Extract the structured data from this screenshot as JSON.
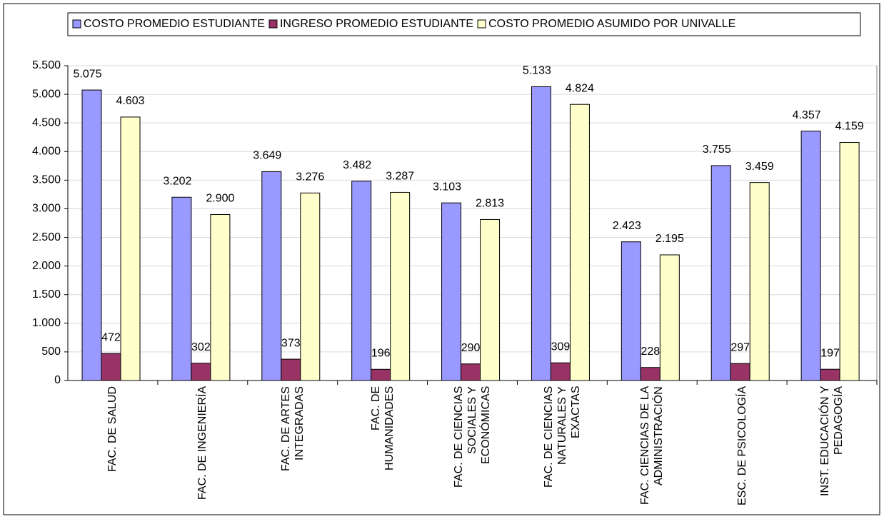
{
  "chart_data": {
    "type": "bar",
    "categories": [
      "FAC. DE SALUD",
      "FAC. DE INGENIERÍA",
      "FAC. DE ARTES INTEGRADAS",
      "FAC. DE HUMANIDADES",
      "FAC. DE CIENCIAS SOCIALES Y ECONÓMICAS",
      "FAC. DE CIENCIAS NATURALES Y EXACTAS",
      "FAC. CIENCIAS DE LA ADMINISTRACIÓN",
      "ESC. DE PSICOLOGÍA",
      "INST. EDUCACIÓN Y PEDAGOGÍA"
    ],
    "series": [
      {
        "name": "COSTO PROMEDIO ESTUDIANTE",
        "color": "#9999ff",
        "values": [
          5075,
          3202,
          3649,
          3482,
          3103,
          5133,
          2423,
          3755,
          4357
        ],
        "value_labels": [
          "5.075",
          "3.202",
          "3.649",
          "3.482",
          "3.103",
          "5.133",
          "2.423",
          "3.755",
          "4.357"
        ]
      },
      {
        "name": "INGRESO PROMEDIO ESTUDIANTE",
        "color": "#993366",
        "values": [
          472,
          302,
          373,
          196,
          290,
          309,
          228,
          297,
          197
        ]
      },
      {
        "name": "COSTO PROMEDIO ASUMIDO POR UNIVALLE",
        "color": "#ffffcc",
        "values": [
          4603,
          2900,
          3276,
          3287,
          2813,
          4824,
          2195,
          3459,
          4159
        ],
        "value_labels": [
          "4.603",
          "2.900",
          "3.276",
          "3.287",
          "2.813",
          "4.824",
          "2.195",
          "3.459",
          "4.159"
        ]
      }
    ],
    "ylim": [
      0,
      5500
    ],
    "yticks": [
      0,
      500,
      {
        "value": 1000,
        "label": "1.000"
      },
      {
        "value": 1500,
        "label": "1.500"
      },
      {
        "value": 2000,
        "label": "2.000"
      },
      {
        "value": 2500,
        "label": "2.500"
      },
      {
        "value": 3000,
        "label": "3.000"
      },
      {
        "value": 3500,
        "label": "3.500"
      },
      {
        "value": 4000,
        "label": "4.000"
      },
      {
        "value": 4500,
        "label": "4.500"
      },
      {
        "value": 5000,
        "label": "5.000"
      },
      {
        "value": 5500,
        "label": "5.500"
      }
    ],
    "grid": true
  }
}
